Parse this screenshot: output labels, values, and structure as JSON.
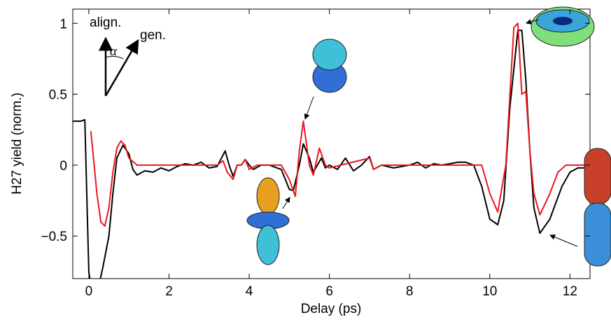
{
  "chart_data": {
    "type": "line",
    "xlabel": "Delay (ps)",
    "ylabel": "H27 yield (norm.)",
    "annotations": [
      "align.",
      "gen.",
      "α"
    ],
    "xlim": [
      -0.4,
      12.5
    ],
    "ylim": [
      -0.8,
      1.1
    ],
    "xticks": [
      0,
      2,
      4,
      6,
      8,
      10,
      12
    ],
    "yticks": [
      {
        "value": -0.5,
        "label": "−0.5"
      },
      0,
      0.5,
      1
    ],
    "series": [
      {
        "color": "#000000",
        "x": [
          -0.4,
          -0.2,
          -0.1,
          0.0,
          0.05,
          0.25,
          0.35,
          0.5,
          0.6,
          0.7,
          0.85,
          1.0,
          1.1,
          1.2,
          1.4,
          1.6,
          1.8,
          2.0,
          2.2,
          2.4,
          2.6,
          2.8,
          3.0,
          3.2,
          3.4,
          3.5,
          3.6,
          3.7,
          3.8,
          3.9,
          4.0,
          4.1,
          4.3,
          4.5,
          4.8,
          5.0,
          5.1,
          5.25,
          5.35,
          5.5,
          5.6,
          5.8,
          5.9,
          6.0,
          6.2,
          6.4,
          6.6,
          6.8,
          7.0,
          7.1,
          7.3,
          7.6,
          8.0,
          8.2,
          8.4,
          8.6,
          8.8,
          9.0,
          9.2,
          9.4,
          9.6,
          9.8,
          10.0,
          10.2,
          10.35,
          10.5,
          10.7,
          10.8,
          10.9,
          11.0,
          11.1,
          11.25,
          11.5,
          11.8,
          12.0,
          12.2,
          12.5
        ],
        "values": [
          0.31,
          0.31,
          0.32,
          -0.75,
          -0.85,
          -0.85,
          -0.72,
          -0.5,
          -0.2,
          0.05,
          0.14,
          0.08,
          -0.03,
          -0.07,
          -0.04,
          -0.05,
          -0.02,
          -0.04,
          -0.01,
          0.01,
          0.0,
          0.02,
          -0.02,
          -0.01,
          0.1,
          0.0,
          -0.08,
          0.0,
          0.0,
          0.04,
          0.0,
          -0.03,
          0.0,
          0.0,
          -0.03,
          -0.17,
          -0.18,
          0.0,
          0.15,
          0.05,
          -0.05,
          0.05,
          -0.02,
          0.0,
          -0.03,
          0.05,
          -0.04,
          0.0,
          0.06,
          -0.03,
          0.0,
          -0.02,
          0.0,
          0.02,
          -0.02,
          0.01,
          0.0,
          0.01,
          0.02,
          0.02,
          0.0,
          -0.15,
          -0.38,
          -0.42,
          -0.25,
          0.4,
          0.95,
          0.95,
          0.6,
          0.1,
          -0.3,
          -0.48,
          -0.38,
          -0.15,
          -0.05,
          -0.02,
          -0.02
        ]
      },
      {
        "color": "#e8191e",
        "x": [
          0.05,
          0.1,
          0.2,
          0.3,
          0.4,
          0.5,
          0.6,
          0.7,
          0.8,
          0.9,
          1.0,
          1.2,
          3.2,
          3.35,
          3.45,
          3.6,
          3.7,
          3.8,
          3.9,
          4.0,
          4.2,
          4.8,
          5.0,
          5.15,
          5.25,
          5.35,
          5.5,
          5.6,
          5.75,
          5.9,
          6.0,
          7.0,
          7.1,
          7.3,
          9.8,
          10.0,
          10.2,
          10.4,
          10.6,
          10.7,
          10.8,
          10.9,
          11.0,
          11.1,
          11.25,
          11.5,
          11.7,
          11.9,
          12.5
        ],
        "values": [
          0.24,
          0.1,
          -0.2,
          -0.4,
          -0.43,
          -0.3,
          -0.05,
          0.12,
          0.17,
          0.14,
          0.05,
          0.0,
          0.0,
          0.03,
          -0.05,
          -0.1,
          0.0,
          0.0,
          0.04,
          -0.03,
          0.0,
          0.0,
          -0.1,
          -0.22,
          0.1,
          0.31,
          0.0,
          -0.07,
          0.12,
          0.0,
          -0.02,
          0.05,
          -0.03,
          0.0,
          0.0,
          -0.2,
          -0.33,
          0.0,
          0.97,
          1.0,
          0.5,
          0.52,
          0.1,
          -0.2,
          -0.35,
          -0.2,
          -0.05,
          0.0,
          0.0
        ]
      }
    ]
  }
}
